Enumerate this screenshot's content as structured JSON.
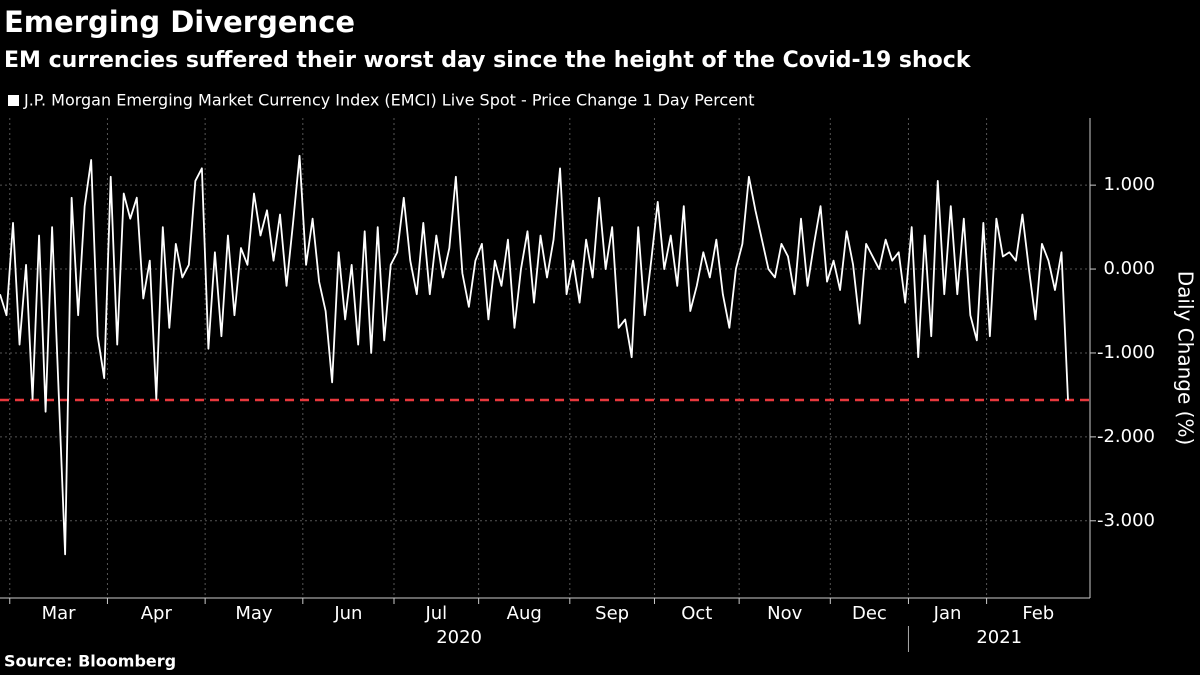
{
  "chart_data": {
    "type": "line",
    "title": "Emerging Divergence",
    "subtitle": "EM currencies suffered their worst day since the height of the Covid-19 shock",
    "y_axis_label": "Daily Change (%)",
    "source": "Source: Bloomberg",
    "categories": [
      null,
      null,
      "Mar",
      null,
      null,
      null,
      null,
      null,
      null,
      null,
      null,
      null,
      null,
      null,
      null,
      null,
      null,
      "Apr",
      null,
      null,
      null,
      null,
      null,
      null,
      null,
      null,
      null,
      null,
      null,
      null,
      null,
      null,
      "May",
      null,
      null,
      null,
      null,
      null,
      null,
      null,
      null,
      null,
      null,
      null,
      null,
      null,
      null,
      "Jun",
      null,
      null,
      null,
      null,
      null,
      null,
      null,
      null,
      null,
      null,
      null,
      null,
      null,
      "Jul",
      null,
      null,
      null,
      null,
      null,
      null,
      null,
      null,
      null,
      null,
      null,
      null,
      "Aug",
      null,
      null,
      null,
      null,
      null,
      null,
      null,
      null,
      null,
      null,
      null,
      null,
      null,
      "Sep",
      null,
      null,
      null,
      null,
      null,
      null,
      null,
      null,
      null,
      null,
      null,
      null,
      "Oct",
      null,
      null,
      null,
      null,
      null,
      null,
      null,
      null,
      null,
      null,
      null,
      null,
      "Nov",
      null,
      null,
      null,
      null,
      null,
      null,
      null,
      null,
      null,
      null,
      null,
      null,
      null,
      "Dec",
      null,
      null,
      null,
      null,
      null,
      null,
      null,
      null,
      null,
      null,
      null,
      "Jan",
      null,
      null,
      null,
      null,
      null,
      null,
      null,
      null,
      null,
      null,
      null,
      "Feb",
      null,
      null,
      null,
      null,
      null,
      null,
      null,
      null,
      null,
      null,
      null,
      null
    ],
    "x_groups": [
      {
        "label": "2020",
        "from": "Mar"
      },
      {
        "label": "2021",
        "from": "Jan"
      }
    ],
    "series": [
      {
        "name": "J.P. Morgan Emerging Market Currency Index (EMCI) Live Spot - Price Change 1 Day Percent",
        "color": "#ffffff",
        "values": [
          -0.3,
          -0.55,
          0.55,
          -0.9,
          0.05,
          -1.55,
          0.4,
          -1.7,
          0.5,
          -1.45,
          -3.4,
          0.85,
          -0.55,
          0.75,
          1.3,
          -0.8,
          -1.3,
          1.1,
          -0.9,
          0.9,
          0.6,
          0.85,
          -0.35,
          0.1,
          -1.55,
          0.5,
          -0.7,
          0.3,
          -0.1,
          0.05,
          1.05,
          1.2,
          -0.95,
          0.2,
          -0.8,
          0.4,
          -0.55,
          0.25,
          0.05,
          0.9,
          0.4,
          0.7,
          0.1,
          0.65,
          -0.2,
          0.55,
          1.35,
          0.05,
          0.6,
          -0.15,
          -0.5,
          -1.35,
          0.2,
          -0.6,
          0.05,
          -0.9,
          0.45,
          -1.0,
          0.5,
          -0.85,
          0.05,
          0.2,
          0.85,
          0.1,
          -0.3,
          0.55,
          -0.3,
          0.4,
          -0.1,
          0.25,
          1.1,
          -0.05,
          -0.45,
          0.1,
          0.3,
          -0.6,
          0.1,
          -0.2,
          0.35,
          -0.7,
          0.0,
          0.45,
          -0.4,
          0.4,
          -0.1,
          0.35,
          1.2,
          -0.3,
          0.1,
          -0.4,
          0.35,
          -0.1,
          0.85,
          0.0,
          0.5,
          -0.7,
          -0.6,
          -1.05,
          0.5,
          -0.55,
          0.1,
          0.8,
          0.0,
          0.4,
          -0.2,
          0.75,
          -0.5,
          -0.2,
          0.2,
          -0.1,
          0.35,
          -0.3,
          -0.7,
          0.0,
          0.3,
          1.1,
          0.7,
          0.35,
          0.0,
          -0.1,
          0.3,
          0.15,
          -0.3,
          0.6,
          -0.2,
          0.3,
          0.75,
          -0.15,
          0.1,
          -0.25,
          0.45,
          0.05,
          -0.65,
          0.3,
          0.15,
          0.0,
          0.35,
          0.1,
          0.2,
          -0.4,
          0.5,
          -1.05,
          0.4,
          -0.8,
          1.05,
          -0.3,
          0.75,
          -0.3,
          0.6,
          -0.55,
          -0.85,
          0.55,
          -0.8,
          0.6,
          0.15,
          0.2,
          0.1,
          0.65,
          0.0,
          -0.6,
          0.3,
          0.1,
          -0.25,
          0.2,
          -1.56
        ]
      }
    ],
    "reference_line": {
      "value": -1.56,
      "color": "#e8383d",
      "style": "dashed"
    },
    "ylim": [
      -3.92,
      1.8
    ],
    "yticks": [
      {
        "value": 1,
        "label": "1.000"
      },
      {
        "value": 0,
        "label": "0.000"
      },
      {
        "value": -1,
        "label": "-1.000"
      },
      {
        "value": -2,
        "label": "-2.000"
      },
      {
        "value": -3,
        "label": "-3.000"
      }
    ],
    "grid": true,
    "legend": "top-left"
  }
}
